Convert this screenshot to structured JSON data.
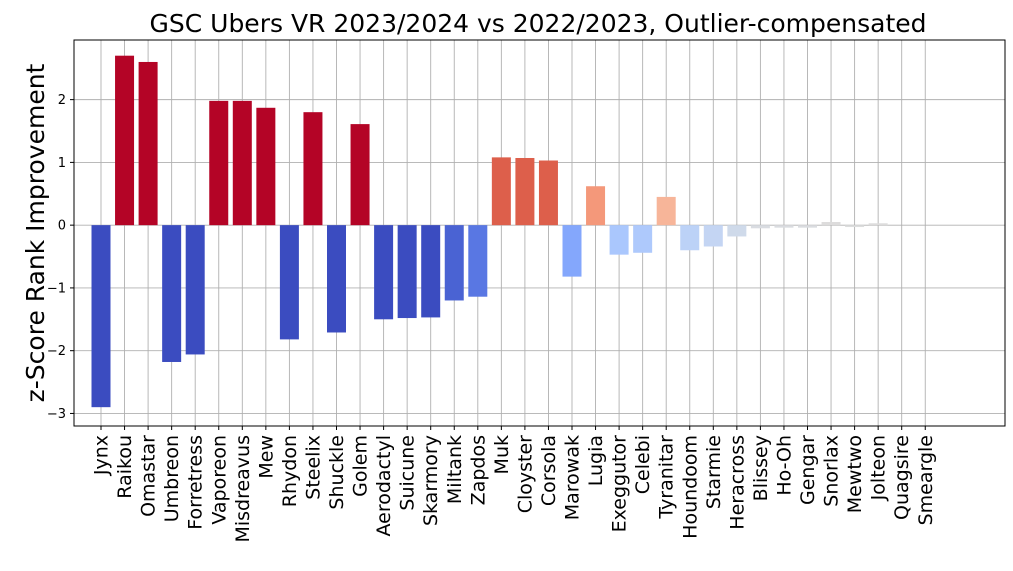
{
  "chart_data": {
    "type": "bar",
    "title": "GSC Ubers VR 2023/2024 vs 2022/2023, Outlier-compensated",
    "ylabel": "z-Score Rank Improvement",
    "xlabel": "",
    "ylim": [
      -3.2,
      2.95
    ],
    "yticks": [
      -3,
      -2,
      -1,
      0,
      1,
      2
    ],
    "ytick_labels": [
      "−3",
      "−2",
      "−1",
      "0",
      "1",
      "2"
    ],
    "grid": true,
    "categories": [
      "Jynx",
      "Raikou",
      "Omastar",
      "Umbreon",
      "Forretress",
      "Vaporeon",
      "Misdreavus",
      "Mew",
      "Rhydon",
      "Steelix",
      "Shuckle",
      "Golem",
      "Aerodactyl",
      "Suicune",
      "Skarmory",
      "Miltank",
      "Zapdos",
      "Muk",
      "Cloyster",
      "Corsola",
      "Marowak",
      "Lugia",
      "Exeggutor",
      "Celebi",
      "Tyranitar",
      "Houndoom",
      "Starmie",
      "Heracross",
      "Blissey",
      "Ho-Oh",
      "Gengar",
      "Snorlax",
      "Mewtwo",
      "Jolteon",
      "Quagsire",
      "Smeargle"
    ],
    "values": [
      -2.9,
      2.7,
      2.6,
      -2.18,
      -2.06,
      1.98,
      1.98,
      1.87,
      -1.82,
      1.8,
      -1.71,
      1.61,
      -1.5,
      -1.48,
      -1.47,
      -1.2,
      -1.14,
      1.08,
      1.07,
      1.03,
      -0.82,
      0.62,
      -0.47,
      -0.44,
      0.45,
      -0.4,
      -0.34,
      -0.18,
      -0.05,
      -0.04,
      -0.04,
      0.05,
      -0.03,
      0.03,
      0.0,
      0.0
    ],
    "colors": [
      "#3b4cc0",
      "#b40426",
      "#b40426",
      "#3b4cc0",
      "#3b4cc0",
      "#b40426",
      "#b40426",
      "#b40426",
      "#3b4cc0",
      "#b40426",
      "#3b4cc0",
      "#b40426",
      "#3b4cc0",
      "#3b4cc0",
      "#3b4cc0",
      "#4a63d3",
      "#5977e3",
      "#dd5f4b",
      "#dd5f4b",
      "#dd5f4b",
      "#84a7fc",
      "#f4987a",
      "#aac7fd",
      "#aec9fc",
      "#f7b599",
      "#bcd2f7",
      "#c4d5f3",
      "#cfdaea",
      "#d9dce1",
      "#dadce0",
      "#dadce0",
      "#dddcdc",
      "#dcdddd",
      "#dddcdc",
      "#dddddd",
      "#dddddd"
    ]
  }
}
